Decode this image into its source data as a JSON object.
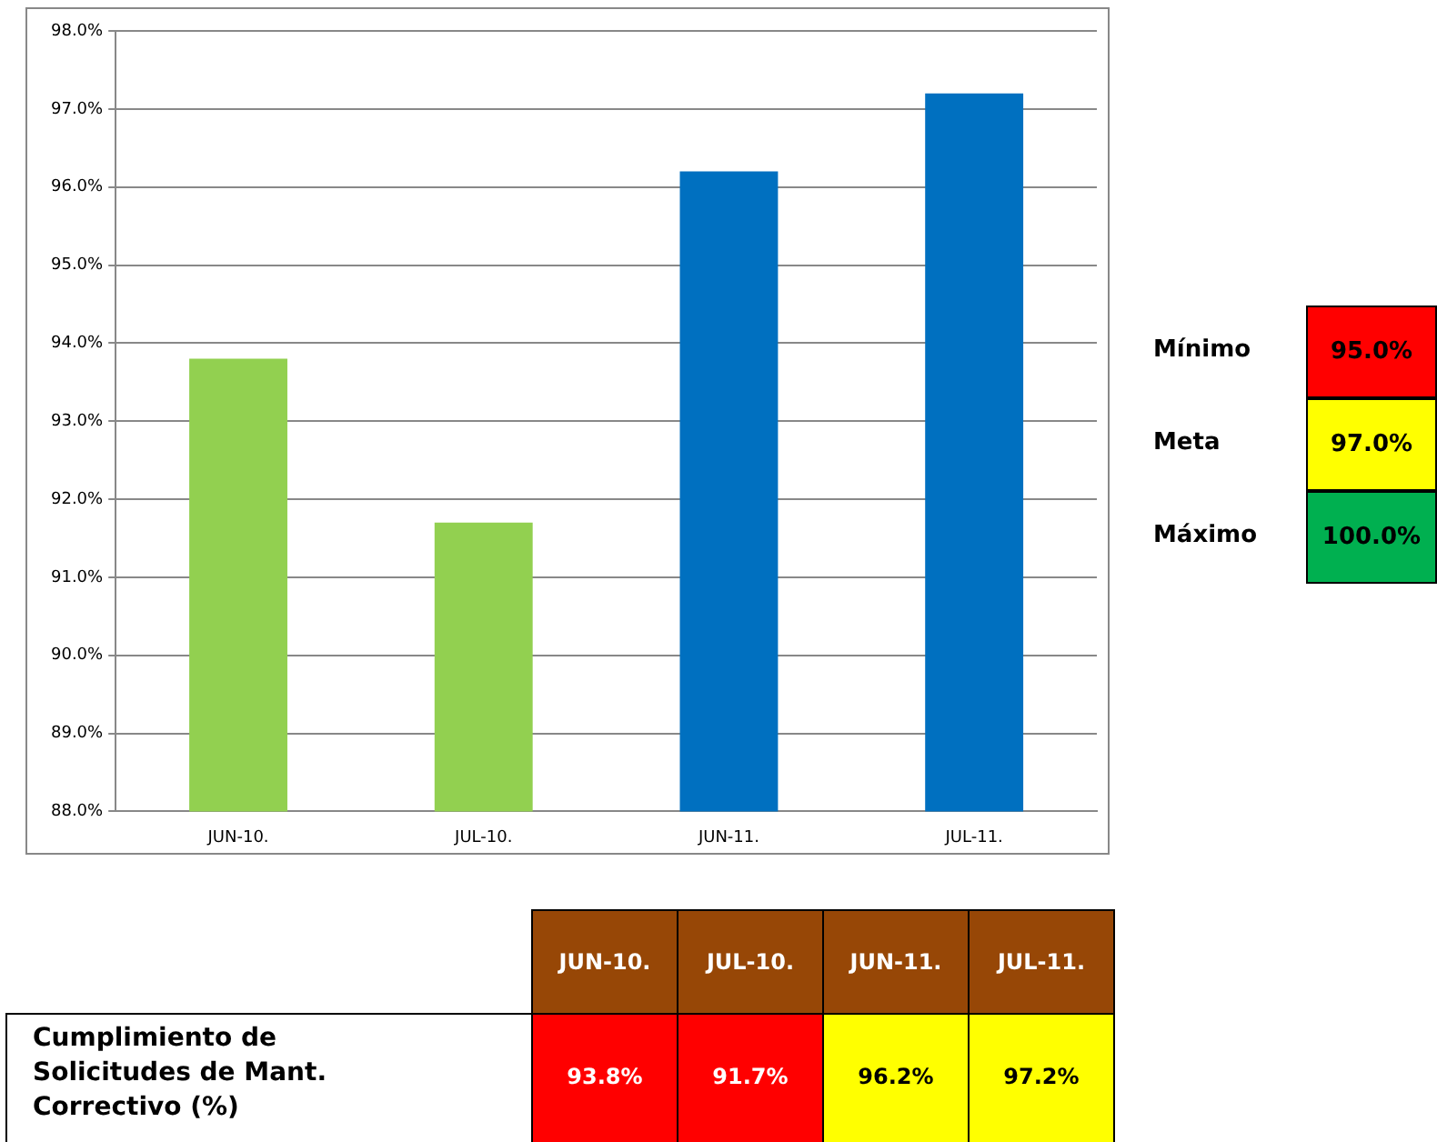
{
  "chart_data": {
    "type": "bar",
    "categories": [
      "JUN-10.",
      "JUL-10.",
      "JUN-11.",
      "JUL-11."
    ],
    "values": [
      93.8,
      91.7,
      96.2,
      97.2
    ],
    "colors": [
      "#92d050",
      "#92d050",
      "#0070c0",
      "#0070c0"
    ],
    "ylim": [
      88,
      98
    ],
    "yticks": [
      {
        "value": 88,
        "label": "88.0%"
      },
      {
        "value": 89,
        "label": "89.0%"
      },
      {
        "value": 90,
        "label": "90.0%"
      },
      {
        "value": 91,
        "label": "91.0%"
      },
      {
        "value": 92,
        "label": "92.0%"
      },
      {
        "value": 93,
        "label": "93.0%"
      },
      {
        "value": 94,
        "label": "94.0%"
      },
      {
        "value": 95,
        "label": "95.0%"
      },
      {
        "value": 96,
        "label": "96.0%"
      },
      {
        "value": 97,
        "label": "97.0%"
      },
      {
        "value": 98,
        "label": "98.0%"
      }
    ],
    "grid": "y",
    "annotations": [
      "Mínimo",
      "95.0%",
      "Meta",
      "97.0%",
      "Máximo",
      "100.0%",
      "Cumplimiento de Solicitudes de Mant. Correctivo (%)",
      "93.8%",
      "91.7%",
      "96.2%",
      "97.2%"
    ]
  }
}
